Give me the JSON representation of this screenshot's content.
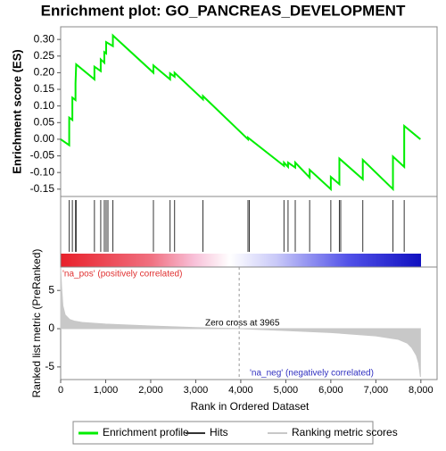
{
  "chart_data": [
    {
      "type": "line",
      "title": "Enrichment plot: GO_PANCREAS_DEVELOPMENT",
      "ylabel": "Enrichment score (ES)",
      "xlim": [
        0,
        8360
      ],
      "ylim": [
        -0.172,
        0.338
      ],
      "yticks": [
        {
          "value": -0.15,
          "label": "-0.15"
        },
        {
          "value": -0.1,
          "label": "-0.10"
        },
        -0.05,
        {
          "value": 0,
          "label": "0.00"
        },
        0.05,
        {
          "value": 0.1,
          "label": "0.10"
        },
        0.15,
        {
          "value": 0.2,
          "label": "0.20"
        },
        0.25,
        {
          "value": 0.3,
          "label": "0.30"
        }
      ],
      "series": [
        {
          "name": "Enrichment profile",
          "color": "#00ee00",
          "x": [
            0,
            190,
            190,
            260,
            260,
            330,
            330,
            345,
            750,
            750,
            890,
            890,
            970,
            970,
            1010,
            1010,
            1160,
            1160,
            2060,
            2060,
            2430,
            2430,
            2530,
            2530,
            3160,
            3160,
            4160,
            4160,
            4960,
            4960,
            5050,
            5050,
            5210,
            5210,
            5530,
            5530,
            6000,
            6000,
            6190,
            6190,
            6710,
            6710,
            7380,
            7380,
            7630,
            7630,
            7990
          ],
          "values": [
            0,
            -0.018,
            0.065,
            0.058,
            0.125,
            0.118,
            0.168,
            0.225,
            0.18,
            0.218,
            0.205,
            0.24,
            0.23,
            0.262,
            0.258,
            0.292,
            0.28,
            0.312,
            0.2,
            0.222,
            0.18,
            0.198,
            0.188,
            0.2,
            0.12,
            0.13,
            0,
            0.005,
            -0.08,
            -0.07,
            -0.083,
            -0.07,
            -0.085,
            -0.07,
            -0.115,
            -0.092,
            -0.15,
            -0.113,
            -0.135,
            -0.058,
            -0.12,
            -0.062,
            -0.15,
            -0.052,
            -0.083,
            0.04,
            0
          ]
        }
      ]
    },
    {
      "type": "hits",
      "xlim": [
        0,
        8360
      ],
      "series": [
        {
          "name": "Hits",
          "color": "#333333",
          "x": [
            190,
            260,
            330,
            345,
            750,
            890,
            970,
            1010,
            1050,
            1160,
            2060,
            2430,
            2530,
            3160,
            4160,
            4190,
            4960,
            5050,
            5210,
            5530,
            6000,
            6190,
            6220,
            6710,
            7380,
            7630
          ]
        }
      ]
    },
    {
      "type": "area",
      "ylabel": "Ranked list metric (PreRanked)",
      "xlabel": "Rank in Ordered Dataset",
      "xlim": [
        0,
        8360
      ],
      "ylim": [
        -6.65,
        8.06
      ],
      "yticks": [
        -5,
        0,
        5
      ],
      "xticks": [
        0,
        {
          "value": 1000,
          "label": "1,000"
        },
        {
          "value": 2000,
          "label": "2,000"
        },
        {
          "value": 3000,
          "label": "3,000"
        },
        {
          "value": 4000,
          "label": "4,000"
        },
        {
          "value": 5000,
          "label": "5,000"
        },
        {
          "value": 6000,
          "label": "6,000"
        },
        {
          "value": 7000,
          "label": "7,000"
        },
        {
          "value": 8000,
          "label": "8,000"
        }
      ],
      "zero_cross": 3965,
      "zero_cross_label": "Zero cross at 3965",
      "pos_label": "'na_pos' (positively correlated)",
      "neg_label": "'na_neg' (negatively correlated)",
      "series": [
        {
          "name": "Ranking metric scores",
          "color": "#c8c8c8",
          "x": [
            0,
            20,
            50,
            100,
            200,
            300,
            500,
            1000,
            2000,
            3000,
            3965,
            5000,
            6000,
            7000,
            7500,
            7700,
            7800,
            7900,
            7950,
            7990
          ],
          "values": [
            8,
            5.5,
            3,
            1.8,
            1.2,
            1.0,
            0.8,
            0.6,
            0.35,
            0.15,
            0,
            -0.25,
            -0.5,
            -0.95,
            -1.4,
            -1.9,
            -2.5,
            -3.5,
            -4.5,
            -6.3
          ]
        }
      ]
    }
  ]
}
